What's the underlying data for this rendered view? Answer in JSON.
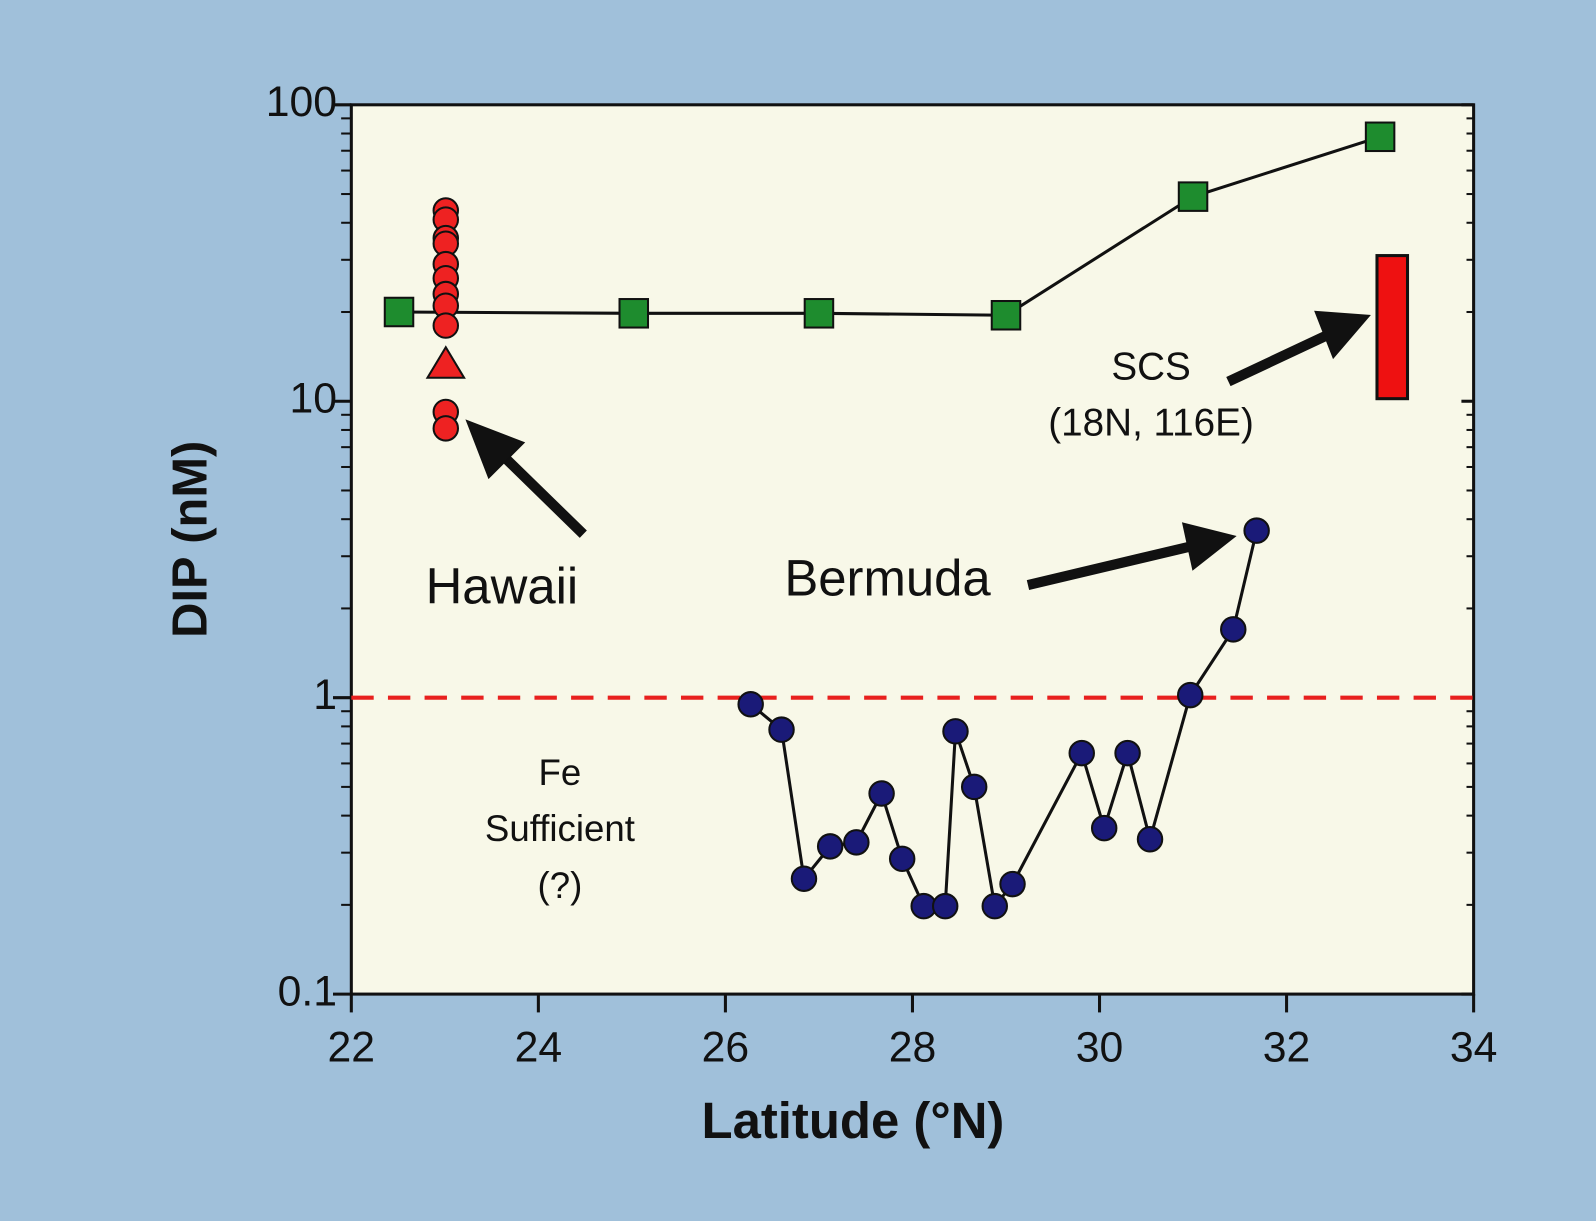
{
  "chart_data": {
    "type": "line",
    "xlabel": "Latitude (°N)",
    "ylabel": "DIP  (nM)",
    "xlim": [
      22,
      34
    ],
    "xticks": [
      22,
      24,
      26,
      28,
      30,
      32,
      34
    ],
    "ylim": [
      0.1,
      100
    ],
    "yticks": [
      0.1,
      1,
      10,
      100
    ],
    "log_y": true,
    "series": [
      {
        "color": "#1e8c2e",
        "marker": "square",
        "connected": true,
        "x": [
          22.51,
          25.02,
          27.0,
          29.0,
          31.0,
          33.0
        ],
        "y": [
          20,
          19.8,
          19.8,
          19.5,
          49,
          78
        ]
      },
      {
        "color": "#ee2222",
        "marker": "circle",
        "connected": false,
        "x": [
          23.01,
          23.01,
          23.01,
          23.01,
          23.01,
          23.01,
          23.01,
          23.01,
          23.01,
          23.01,
          23.01
        ],
        "y": [
          44,
          41,
          35.5,
          34,
          29,
          26,
          23,
          21,
          18,
          9.2,
          8.1
        ]
      },
      {
        "color": "#ee2222",
        "marker": "triangle",
        "connected": false,
        "x": [
          23.01
        ],
        "y": [
          13.3
        ]
      },
      {
        "color": "#1a1a78",
        "marker": "circle",
        "connected": true,
        "x": [
          26.27,
          26.6,
          26.84,
          27.12,
          27.4,
          27.67,
          27.89,
          28.12,
          28.35,
          28.46,
          28.66,
          28.88,
          29.07,
          29.81,
          30.05,
          30.3,
          30.54,
          30.97,
          31.43,
          31.68
        ],
        "y": [
          0.95,
          0.78,
          0.245,
          0.315,
          0.325,
          0.475,
          0.286,
          0.198,
          0.198,
          0.77,
          0.5,
          0.198,
          0.235,
          0.65,
          0.363,
          0.65,
          0.333,
          1.02,
          1.7,
          3.66
        ]
      }
    ],
    "range_bars": [
      {
        "x": 33.13,
        "low": 10.2,
        "high": 31,
        "color": "#ee1111"
      }
    ],
    "reference_line": {
      "value": 1,
      "color": "#e8201e"
    },
    "annotations": [
      "Hawaii",
      "Bermuda",
      "SCS",
      "(18N, 116E)",
      "Fe",
      "Sufficient",
      "(?)"
    ]
  }
}
